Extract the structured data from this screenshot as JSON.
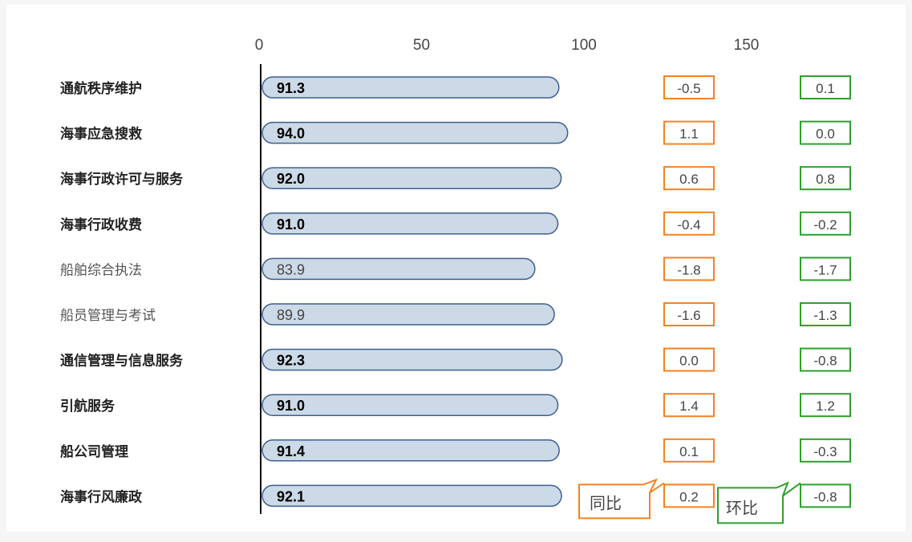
{
  "colors": {
    "background": "#f5f5f5",
    "panel": "#ffffff",
    "bar_fill": "#ccd9e6",
    "bar_stroke": "#3c5f8f",
    "axis": "#000000",
    "tick_text": "#444444",
    "yoy": "#f58220",
    "mom": "#2ca02c"
  },
  "chart_data": {
    "type": "bar",
    "orientation": "horizontal",
    "xlim": [
      0,
      200
    ],
    "x_ticks": [
      "0",
      "50",
      "100",
      "150"
    ],
    "categories": [
      "通航秩序维护",
      "海事应急搜救",
      "海事行政许可与服务",
      "海事行政收费",
      "船舶综合执法",
      "船员管理与考试",
      "通信管理与信息服务",
      "引航服务",
      "船公司管理",
      "海事行风廉政"
    ],
    "bold": [
      true,
      true,
      true,
      true,
      false,
      false,
      true,
      true,
      true,
      true
    ],
    "values": [
      91.3,
      94.0,
      92.0,
      91.0,
      83.9,
      89.9,
      92.3,
      91.0,
      91.4,
      92.1
    ],
    "value_labels": [
      "91.3",
      "94.0",
      "92.0",
      "91.0",
      "83.9",
      "89.9",
      "92.3",
      "91.0",
      "91.4",
      "92.1"
    ],
    "yoy": {
      "label": "同比",
      "values": [
        "-0.5",
        "1.1",
        "0.6",
        "-0.4",
        "-1.8",
        "-1.6",
        "0.0",
        "1.4",
        "0.1",
        "0.2"
      ]
    },
    "mom": {
      "label": "环比",
      "values": [
        "0.1",
        "0.0",
        "0.8",
        "-0.2",
        "-1.7",
        "-1.3",
        "-0.8",
        "1.2",
        "-0.3",
        "-0.8"
      ]
    }
  }
}
